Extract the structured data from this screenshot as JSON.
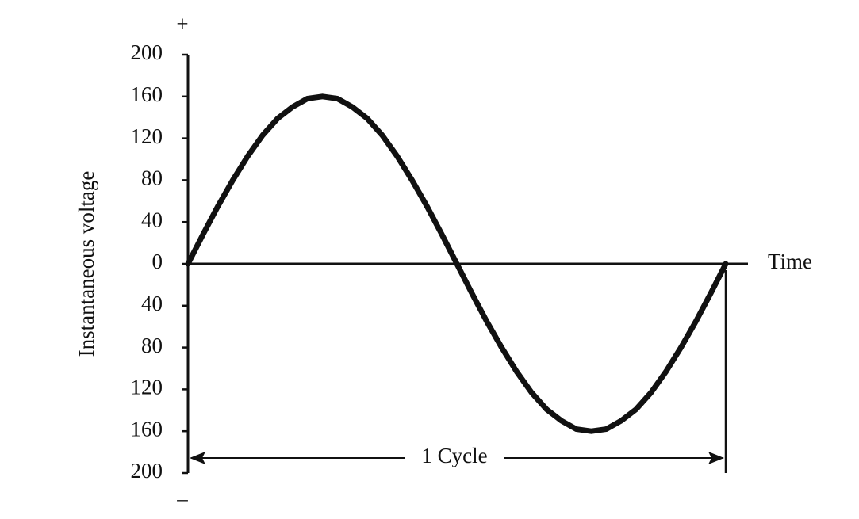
{
  "chart_data": {
    "type": "line",
    "y_label": "Instantaneous voltage",
    "x_label": "Time",
    "y_top_sign": "+",
    "y_bottom_sign": "–",
    "annotation": "1 Cycle",
    "x": [
      0,
      10,
      20,
      30,
      40,
      50,
      60,
      70,
      80,
      90,
      100,
      110,
      120,
      130,
      140,
      150,
      160,
      170,
      180,
      190,
      200,
      210,
      220,
      230,
      240,
      250,
      260,
      270,
      280,
      290,
      300,
      310,
      320,
      330,
      340,
      350,
      360
    ],
    "series": [
      {
        "color": "#111111",
        "values": [
          0,
          28,
          55,
          80,
          103,
          123,
          139,
          150,
          158,
          160,
          158,
          150,
          139,
          123,
          103,
          80,
          55,
          28,
          0,
          -28,
          -55,
          -80,
          -103,
          -123,
          -139,
          -150,
          -158,
          -160,
          -158,
          -150,
          -139,
          -123,
          -103,
          -80,
          -55,
          -28,
          0
        ]
      }
    ],
    "xlim": [
      0,
      360
    ],
    "ylim": [
      -200,
      200
    ],
    "yticks": [
      {
        "value": -200,
        "label": "200"
      },
      {
        "value": -160,
        "label": "160"
      },
      {
        "value": -120,
        "label": "120"
      },
      {
        "value": -80,
        "label": "80"
      },
      {
        "value": -40,
        "label": "40"
      },
      0,
      40,
      80,
      120,
      160,
      200
    ]
  }
}
